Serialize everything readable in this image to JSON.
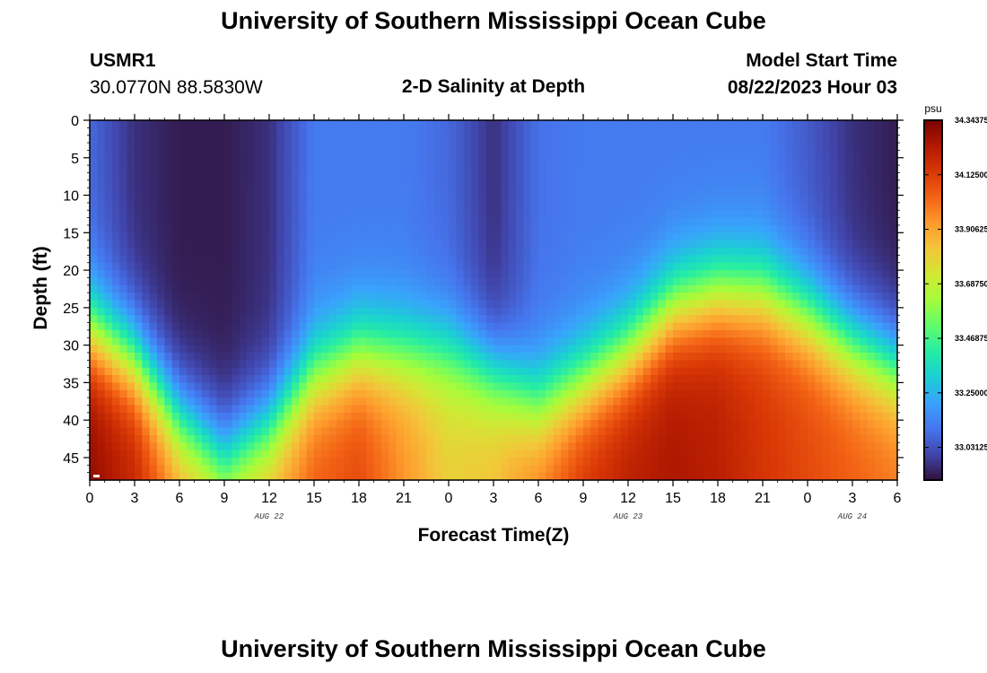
{
  "page": {
    "title": "University of Southern Mississippi Ocean Cube",
    "footer_title": "University of Southern Mississippi Ocean Cube"
  },
  "header": {
    "station": "USMR1",
    "coords": "30.0770N  88.5830W",
    "subtitle": "2-D Salinity at Depth",
    "model_start_label": "Model Start Time",
    "model_start_value": "08/22/2023 Hour 03"
  },
  "chart_data": {
    "type": "heatmap",
    "title": "2-D Salinity at Depth",
    "xlabel": "Forecast Time(Z)",
    "ylabel": "Depth (ft)",
    "x_tick_labels": [
      "0",
      "3",
      "6",
      "9",
      "12",
      "15",
      "18",
      "21",
      "0",
      "3",
      "6",
      "9",
      "12",
      "15",
      "18",
      "21",
      "0",
      "3",
      "6"
    ],
    "x_hours": [
      0,
      3,
      6,
      9,
      12,
      15,
      18,
      21,
      24,
      27,
      30,
      33,
      36,
      39,
      42,
      45,
      48,
      51,
      54
    ],
    "date_labels": [
      {
        "label": "AUG 22",
        "hour": 12
      },
      {
        "label": "AUG 23",
        "hour": 36
      },
      {
        "label": "AUG 24",
        "hour": 51
      }
    ],
    "y_ticks": [
      0,
      5,
      10,
      15,
      20,
      25,
      30,
      35,
      40,
      45
    ],
    "ylim": [
      0,
      48
    ],
    "xlim": [
      0,
      54
    ],
    "y_inverted": true,
    "colorbar": {
      "unit": "psu",
      "min": 32.9,
      "max": 34.34375,
      "tick_values": [
        34.34375,
        34.125,
        33.90625,
        33.6875,
        33.46875,
        33.25,
        33.03125
      ],
      "tick_labels": [
        "34.34375",
        "34.12500",
        "33.90625",
        "33.68750",
        "33.46875",
        "33.25000",
        "33.03125"
      ],
      "colormap": [
        "#30123b",
        "#4145ab",
        "#4675ed",
        "#39a2fc",
        "#1bcfd4",
        "#24eca6",
        "#61fc6c",
        "#a4fc3b",
        "#d1e834",
        "#f3c63a",
        "#fe9b2d",
        "#f36315",
        "#d93806",
        "#b11901",
        "#7a0402"
      ]
    },
    "salinity_profile_by_hour": {
      "hours": [
        0,
        3,
        6,
        9,
        12,
        15,
        18,
        21,
        24,
        27,
        30,
        33,
        36,
        39,
        42,
        45,
        48,
        51,
        54
      ],
      "halocline_depth_ft": [
        28,
        32,
        40,
        45,
        41,
        34,
        31,
        31,
        31,
        34,
        38,
        35,
        31,
        25,
        23,
        23,
        26,
        30,
        33
      ],
      "surface_psu": [
        33.08,
        32.96,
        32.92,
        32.92,
        32.96,
        33.12,
        33.12,
        33.12,
        33.08,
        32.96,
        33.1,
        33.12,
        33.12,
        33.12,
        33.12,
        33.12,
        33.05,
        32.96,
        32.92
      ],
      "bottom_psu": [
        34.3,
        34.2,
        33.95,
        33.85,
        33.9,
        34.05,
        34.1,
        33.95,
        33.8,
        33.85,
        34.0,
        34.15,
        34.22,
        34.25,
        34.22,
        34.15,
        34.1,
        34.05,
        34.0
      ]
    }
  }
}
